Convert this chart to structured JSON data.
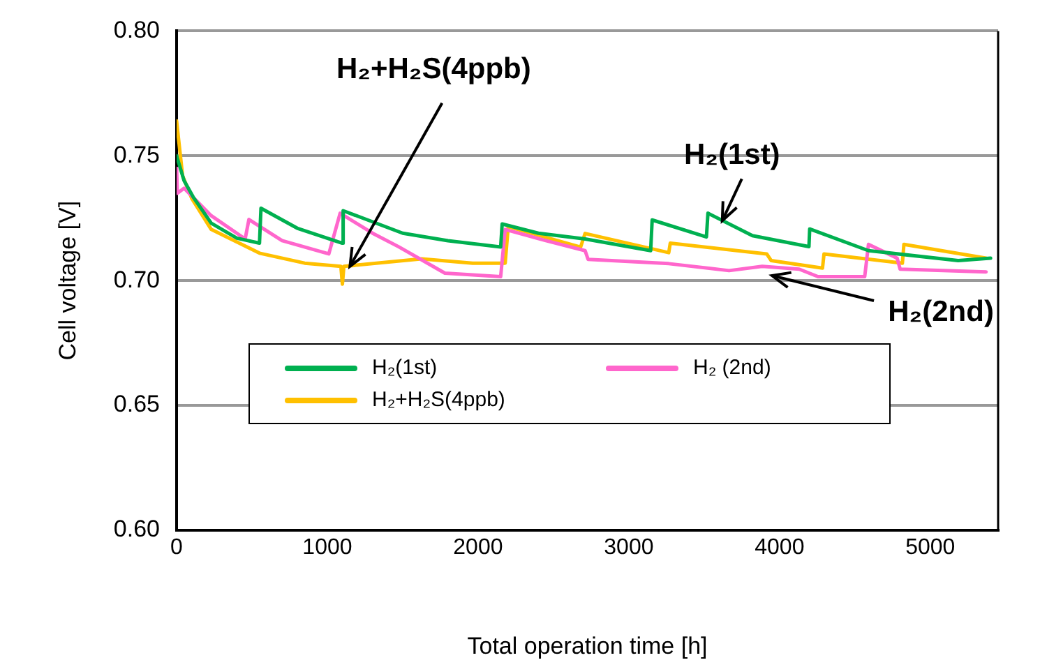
{
  "chart_data": {
    "type": "line",
    "xlabel": "Total operation time [h]",
    "ylabel": "Cell voltage [V]",
    "xlim": [
      0,
      5450
    ],
    "xticks": [
      0,
      1000,
      2000,
      3000,
      4000,
      5000
    ],
    "ylim": [
      0.6,
      0.8
    ],
    "yticks": [
      {
        "value": 0.6,
        "label": "0.60"
      },
      0.65,
      {
        "value": 0.7,
        "label": "0.70"
      },
      0.75,
      {
        "value": 0.8,
        "label": "0.80"
      }
    ],
    "grid": "y",
    "legend": "left",
    "marker": "none",
    "line_style": "solid",
    "series": [
      {
        "name": "H₂(1st)",
        "color": "#00b050",
        "x": [
          0,
          50,
          110,
          230,
          400,
          550,
          560,
          800,
          1100,
          1105,
          1500,
          1800,
          2150,
          2160,
          2400,
          2710,
          3145,
          3155,
          3515,
          3525,
          3820,
          4195,
          4200,
          4590,
          5185,
          5400
        ],
        "values": [
          0.75,
          0.74,
          0.7335,
          0.723,
          0.717,
          0.715,
          0.729,
          0.721,
          0.715,
          0.728,
          0.719,
          0.716,
          0.7135,
          0.7227,
          0.719,
          0.7167,
          0.712,
          0.7243,
          0.7175,
          0.727,
          0.718,
          0.7136,
          0.7207,
          0.712,
          0.708,
          0.709
        ]
      },
      {
        "name": "H₂ (2nd)",
        "color": "#ff66cc",
        "x": [
          0,
          5,
          50,
          230,
          455,
          480,
          700,
          1010,
          1085,
          1300,
          1475,
          1780,
          2150,
          2180,
          2450,
          2710,
          2730,
          3265,
          3665,
          3885,
          4130,
          4255,
          4565,
          4590,
          4780,
          4800,
          5370
        ],
        "values": [
          0.745,
          0.735,
          0.737,
          0.726,
          0.7167,
          0.7245,
          0.716,
          0.7107,
          0.727,
          0.719,
          0.7135,
          0.703,
          0.7016,
          0.7205,
          0.716,
          0.712,
          0.7085,
          0.7068,
          0.704,
          0.7057,
          0.7046,
          0.7016,
          0.7016,
          0.7145,
          0.709,
          0.7046,
          0.7035
        ]
      },
      {
        "name": "H₂+H₂S(4ppb)",
        "color": "#ffc000",
        "x": [
          0,
          40,
          100,
          230,
          550,
          850,
          1090,
          1100,
          1110,
          1625,
          1965,
          2180,
          2200,
          2680,
          2710,
          3265,
          3275,
          3915,
          3945,
          4285,
          4295,
          4815,
          4825,
          5370
        ],
        "values": [
          0.764,
          0.742,
          0.733,
          0.7205,
          0.711,
          0.707,
          0.7057,
          0.6986,
          0.7057,
          0.7087,
          0.707,
          0.707,
          0.7216,
          0.7134,
          0.7189,
          0.7112,
          0.715,
          0.7107,
          0.708,
          0.705,
          0.7107,
          0.707,
          0.7145,
          0.709
        ]
      }
    ],
    "annotations": [
      {
        "text": "H₂+H₂S(4ppb)",
        "x": 1150,
        "y": 0.7057
      },
      {
        "text": "H₂(1st)",
        "x": 3620,
        "y": 0.724
      },
      {
        "text": "H₂(2nd)",
        "x": 3950,
        "y": 0.702
      }
    ]
  }
}
